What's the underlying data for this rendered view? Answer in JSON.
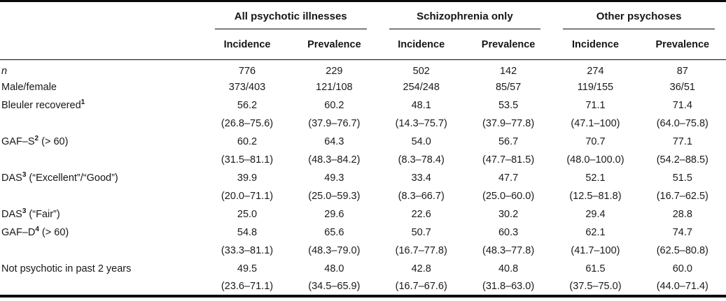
{
  "page": {
    "background": "#ffffff",
    "text_color": "#1c1c1c",
    "rule_color": "#0a0a0a"
  },
  "table": {
    "col_groups": [
      {
        "label": "All psychotic illnesses"
      },
      {
        "label": "Schizophrenia only"
      },
      {
        "label": "Other psychoses"
      }
    ],
    "sub_headers": [
      "Incidence",
      "Prevalence",
      "Incidence",
      "Prevalence",
      "Incidence",
      "Prevalence"
    ],
    "rows": [
      {
        "pre": "n",
        "sup": "",
        "post": "",
        "italic": true,
        "values": [
          "776",
          "229",
          "502",
          "142",
          "274",
          "87"
        ],
        "ci": null
      },
      {
        "pre": "Male/female",
        "sup": "",
        "post": "",
        "italic": false,
        "values": [
          "373/403",
          "121/108",
          "254/248",
          "85/57",
          "119/155",
          "36/51"
        ],
        "ci": null
      },
      {
        "pre": "Bleuler recovered",
        "sup": "1",
        "post": "",
        "italic": false,
        "values": [
          "56.2",
          "60.2",
          "48.1",
          "53.5",
          "71.1",
          "71.4"
        ],
        "ci": [
          "(26.8–75.6)",
          "(37.9–76.7)",
          "(14.3–75.7)",
          "(37.9–77.8)",
          "(47.1–100)",
          "(64.0–75.8)"
        ]
      },
      {
        "pre": "GAF–S",
        "sup": "2",
        "post": " (> 60)",
        "italic": false,
        "values": [
          "60.2",
          "64.3",
          "54.0",
          "56.7",
          "70.7",
          "77.1"
        ],
        "ci": [
          "(31.5–81.1)",
          "(48.3–84.2)",
          "(8.3–78.4)",
          "(47.7–81.5)",
          "(48.0–100.0)",
          "(54.2–88.5)"
        ]
      },
      {
        "pre": "DAS",
        "sup": "3",
        "post": " (“Excellent”/“Good”)",
        "italic": false,
        "values": [
          "39.9",
          "49.3",
          "33.4",
          "47.7",
          "52.1",
          "51.5"
        ],
        "ci": [
          "(20.0–71.1)",
          "(25.0–59.3)",
          "(8.3–66.7)",
          "(25.0–60.0)",
          "(12.5–81.8)",
          "(16.7–62.5)"
        ]
      },
      {
        "pre": "DAS",
        "sup": "3",
        "post": " (“Fair”)",
        "italic": false,
        "values": [
          "25.0",
          "29.6",
          "22.6",
          "30.2",
          "29.4",
          "28.8"
        ],
        "ci": null
      },
      {
        "pre": "GAF–D",
        "sup": "4",
        "post": " (> 60)",
        "italic": false,
        "values": [
          "54.8",
          "65.6",
          "50.7",
          "60.3",
          "62.1",
          "74.7"
        ],
        "ci": [
          "(33.3–81.1)",
          "(48.3–79.0)",
          "(16.7–77.8)",
          "(48.3–77.8)",
          "(41.7–100)",
          "(62.5–80.8)"
        ]
      },
      {
        "pre": "Not psychotic in past 2 years",
        "sup": "",
        "post": "",
        "italic": false,
        "values": [
          "49.5",
          "48.0",
          "42.8",
          "40.8",
          "61.5",
          "60.0"
        ],
        "ci": [
          "(23.6–71.1)",
          "(34.5–65.9)",
          "(16.7–67.6)",
          "(31.8–63.0)",
          "(37.5–75.0)",
          "(44.0–71.4)"
        ]
      }
    ]
  }
}
